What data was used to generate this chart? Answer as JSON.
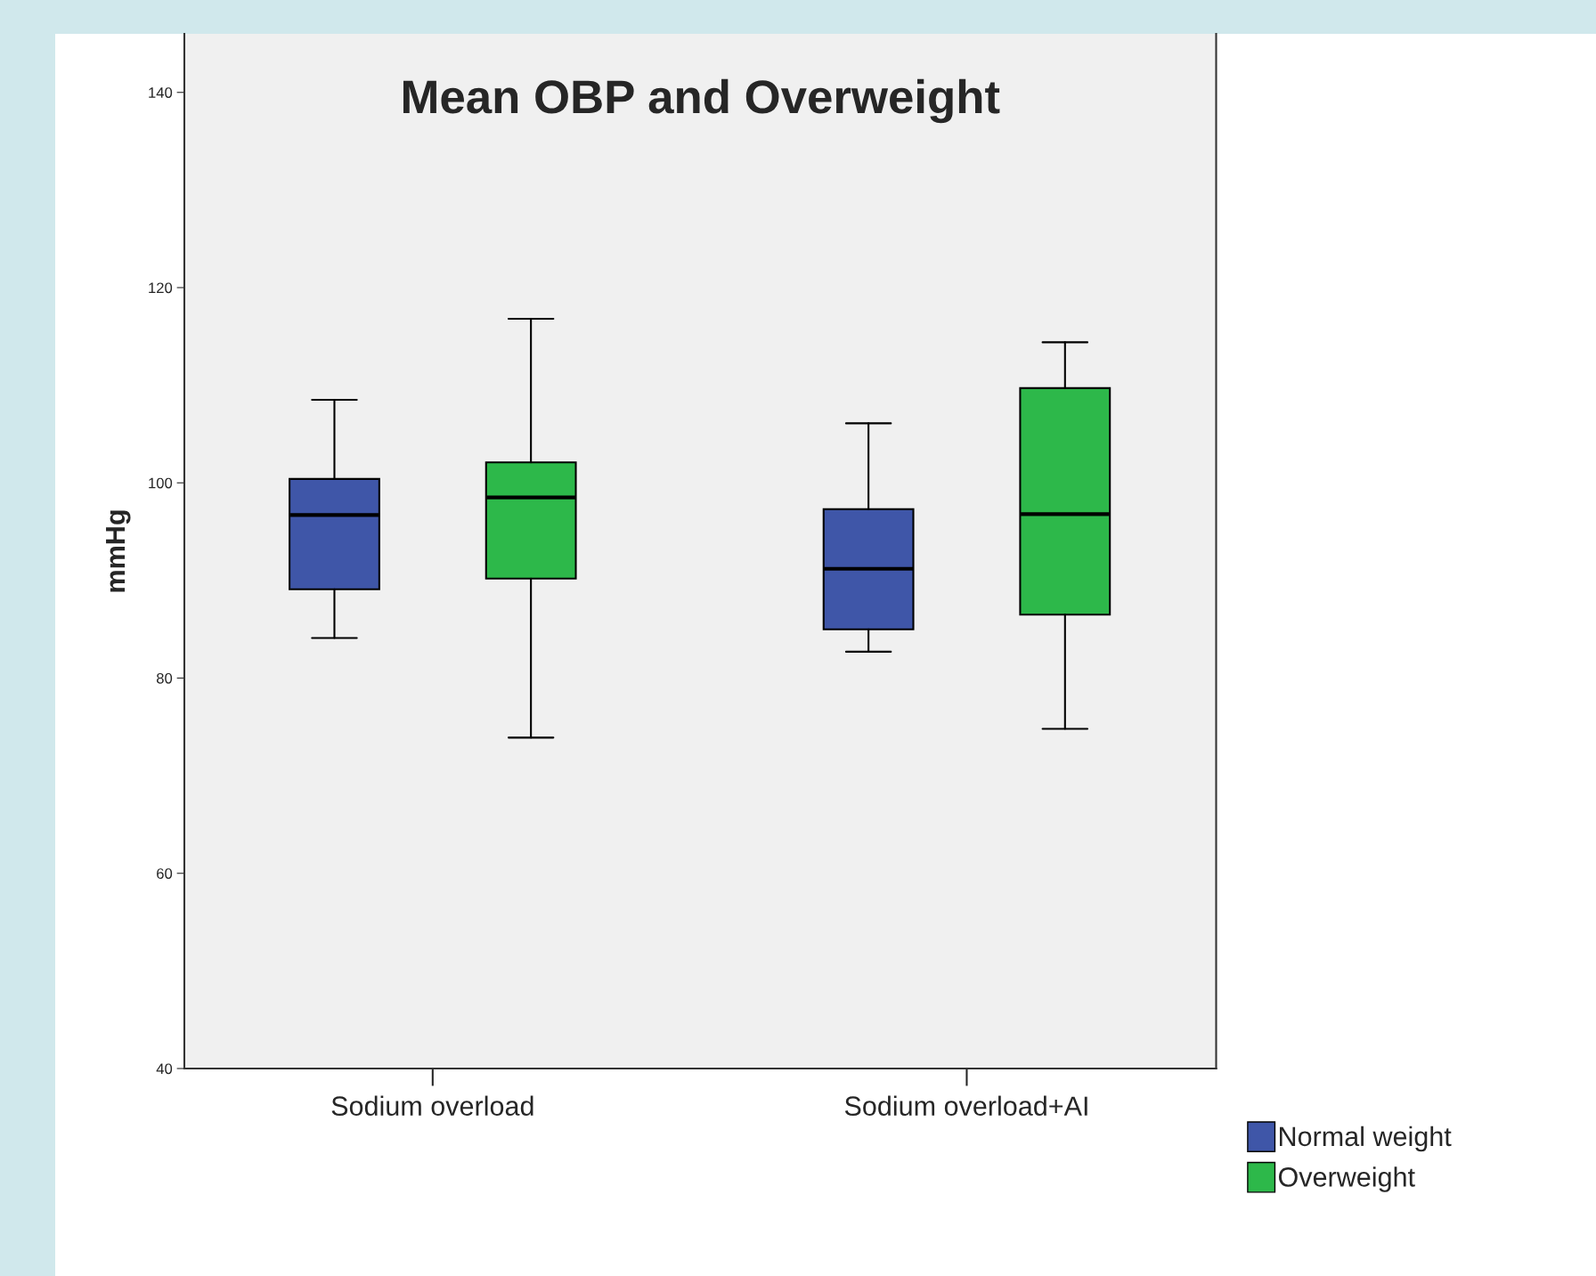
{
  "chart_data": {
    "type": "box",
    "title": "Mean OBP and Overweight",
    "ylabel": "mmHg",
    "categories": [
      "Sodium overload",
      "Sodium overload+AI"
    ],
    "series": [
      {
        "name": "Normal weight",
        "color": "#3f56a8",
        "boxes": [
          {
            "low": 84.1,
            "q1": 89.1,
            "median": 96.7,
            "q3": 100.4,
            "high": 108.5
          },
          {
            "low": 82.7,
            "q1": 85.0,
            "median": 91.2,
            "q3": 97.3,
            "high": 106.1
          }
        ]
      },
      {
        "name": "Overweight",
        "color": "#2db84a",
        "boxes": [
          {
            "low": 73.9,
            "q1": 90.2,
            "median": 98.5,
            "q3": 102.1,
            "high": 116.8
          },
          {
            "low": 74.8,
            "q1": 86.5,
            "median": 96.8,
            "q3": 109.7,
            "high": 114.4
          }
        ]
      }
    ],
    "ylim": [
      40,
      146
    ],
    "yticks": [
      40,
      60,
      80,
      100,
      120,
      140
    ],
    "grid": false,
    "legend": "bottom right"
  }
}
